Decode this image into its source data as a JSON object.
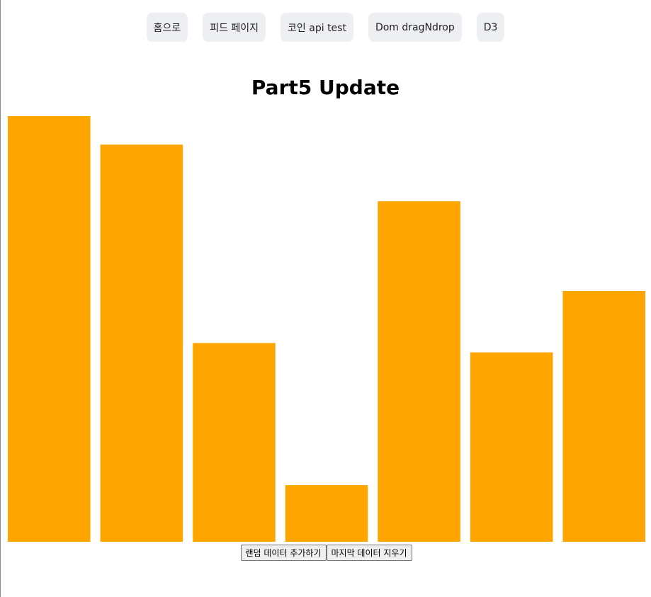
{
  "nav": {
    "items": [
      {
        "id": "home",
        "label": "홈으로"
      },
      {
        "id": "feed",
        "label": "피드 페이지"
      },
      {
        "id": "coin",
        "label": "코인 api test"
      },
      {
        "id": "dom",
        "label": "Dom dragNdrop"
      },
      {
        "id": "d3",
        "label": "D3"
      }
    ]
  },
  "page": {
    "title": "Part5 Update"
  },
  "chart_data": {
    "type": "bar",
    "values": [
      100,
      93.3,
      46.7,
      13.3,
      80,
      44.5,
      58.9
    ],
    "ylim": [
      0,
      100
    ],
    "bar_color": "#ffa500"
  },
  "controls": {
    "add_label": "랜덤 데이터 추가하기",
    "remove_label": "마지막 데이터 지우기"
  }
}
